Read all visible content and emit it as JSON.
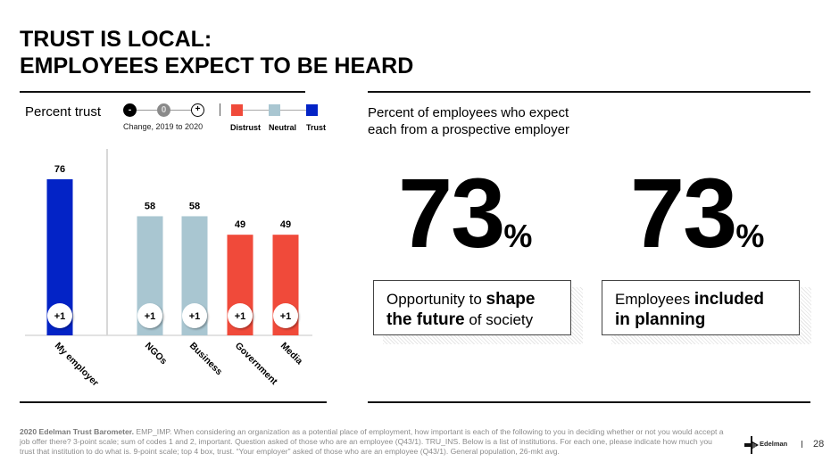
{
  "title": {
    "line1": "TRUST IS LOCAL:",
    "line2": "EMPLOYEES EXPECT TO BE HEARD"
  },
  "left_panel": {
    "heading": "Percent trust",
    "change_legend": {
      "minus": "-",
      "zero": "0",
      "plus": "+",
      "caption": "Change, 2019 to 2020"
    },
    "trust_legend": [
      {
        "label": "Distrust",
        "color": "#f04a3a"
      },
      {
        "label": "Neutral",
        "color": "#a9c6d1"
      },
      {
        "label": "Trust",
        "color": "#0323c6"
      }
    ]
  },
  "chart_data": {
    "type": "bar",
    "title": "Percent trust",
    "xlabel": "",
    "ylabel": "",
    "ylim": [
      0,
      100
    ],
    "grid": false,
    "legend_position": "top",
    "categories": [
      "My employer",
      "NGOs",
      "Business",
      "Government",
      "Media"
    ],
    "values": [
      76,
      58,
      58,
      49,
      49
    ],
    "trust_level": [
      "Trust",
      "Neutral",
      "Neutral",
      "Distrust",
      "Distrust"
    ],
    "change_2019_to_2020": [
      "+1",
      "+1",
      "+1",
      "+1",
      "+1"
    ],
    "colors": {
      "Trust": "#0323c6",
      "Neutral": "#a9c6d1",
      "Distrust": "#f04a3a"
    }
  },
  "right_panel": {
    "subtitle_line1": "Percent of employees who expect",
    "subtitle_line2": "each from a prospective employer",
    "stats": [
      {
        "value": "73",
        "unit": "%",
        "text_parts": [
          {
            "text": "Opportunity to ",
            "bold": false
          },
          {
            "text": "shape",
            "bold": true
          },
          {
            "text": "the future",
            "bold": true
          },
          {
            "text": " of society",
            "bold": false
          }
        ]
      },
      {
        "value": "73",
        "unit": "%",
        "text_parts": [
          {
            "text": "Employees ",
            "bold": false
          },
          {
            "text": "included",
            "bold": true
          },
          {
            "text": "in planning",
            "bold": true
          }
        ]
      }
    ]
  },
  "footer": {
    "source_bold": "2020 Edelman Trust Barometer.",
    "source_text": " EMP_IMP. When considering an organization as a potential place of employment, how important is each of the following to you in deciding whether or not you would accept a job offer there? 3-point scale; sum of codes 1 and 2, important. Question asked of those who are an employee (Q43/1). TRU_INS. Below is a list of institutions. For each one, please indicate how much you trust that institution to do what is. 9-point scale; top 4 box, trust. “Your employer” asked of those who are an employee (Q43/1). General population, 26-mkt avg.",
    "brand": "Edelman",
    "page_number": "28"
  }
}
